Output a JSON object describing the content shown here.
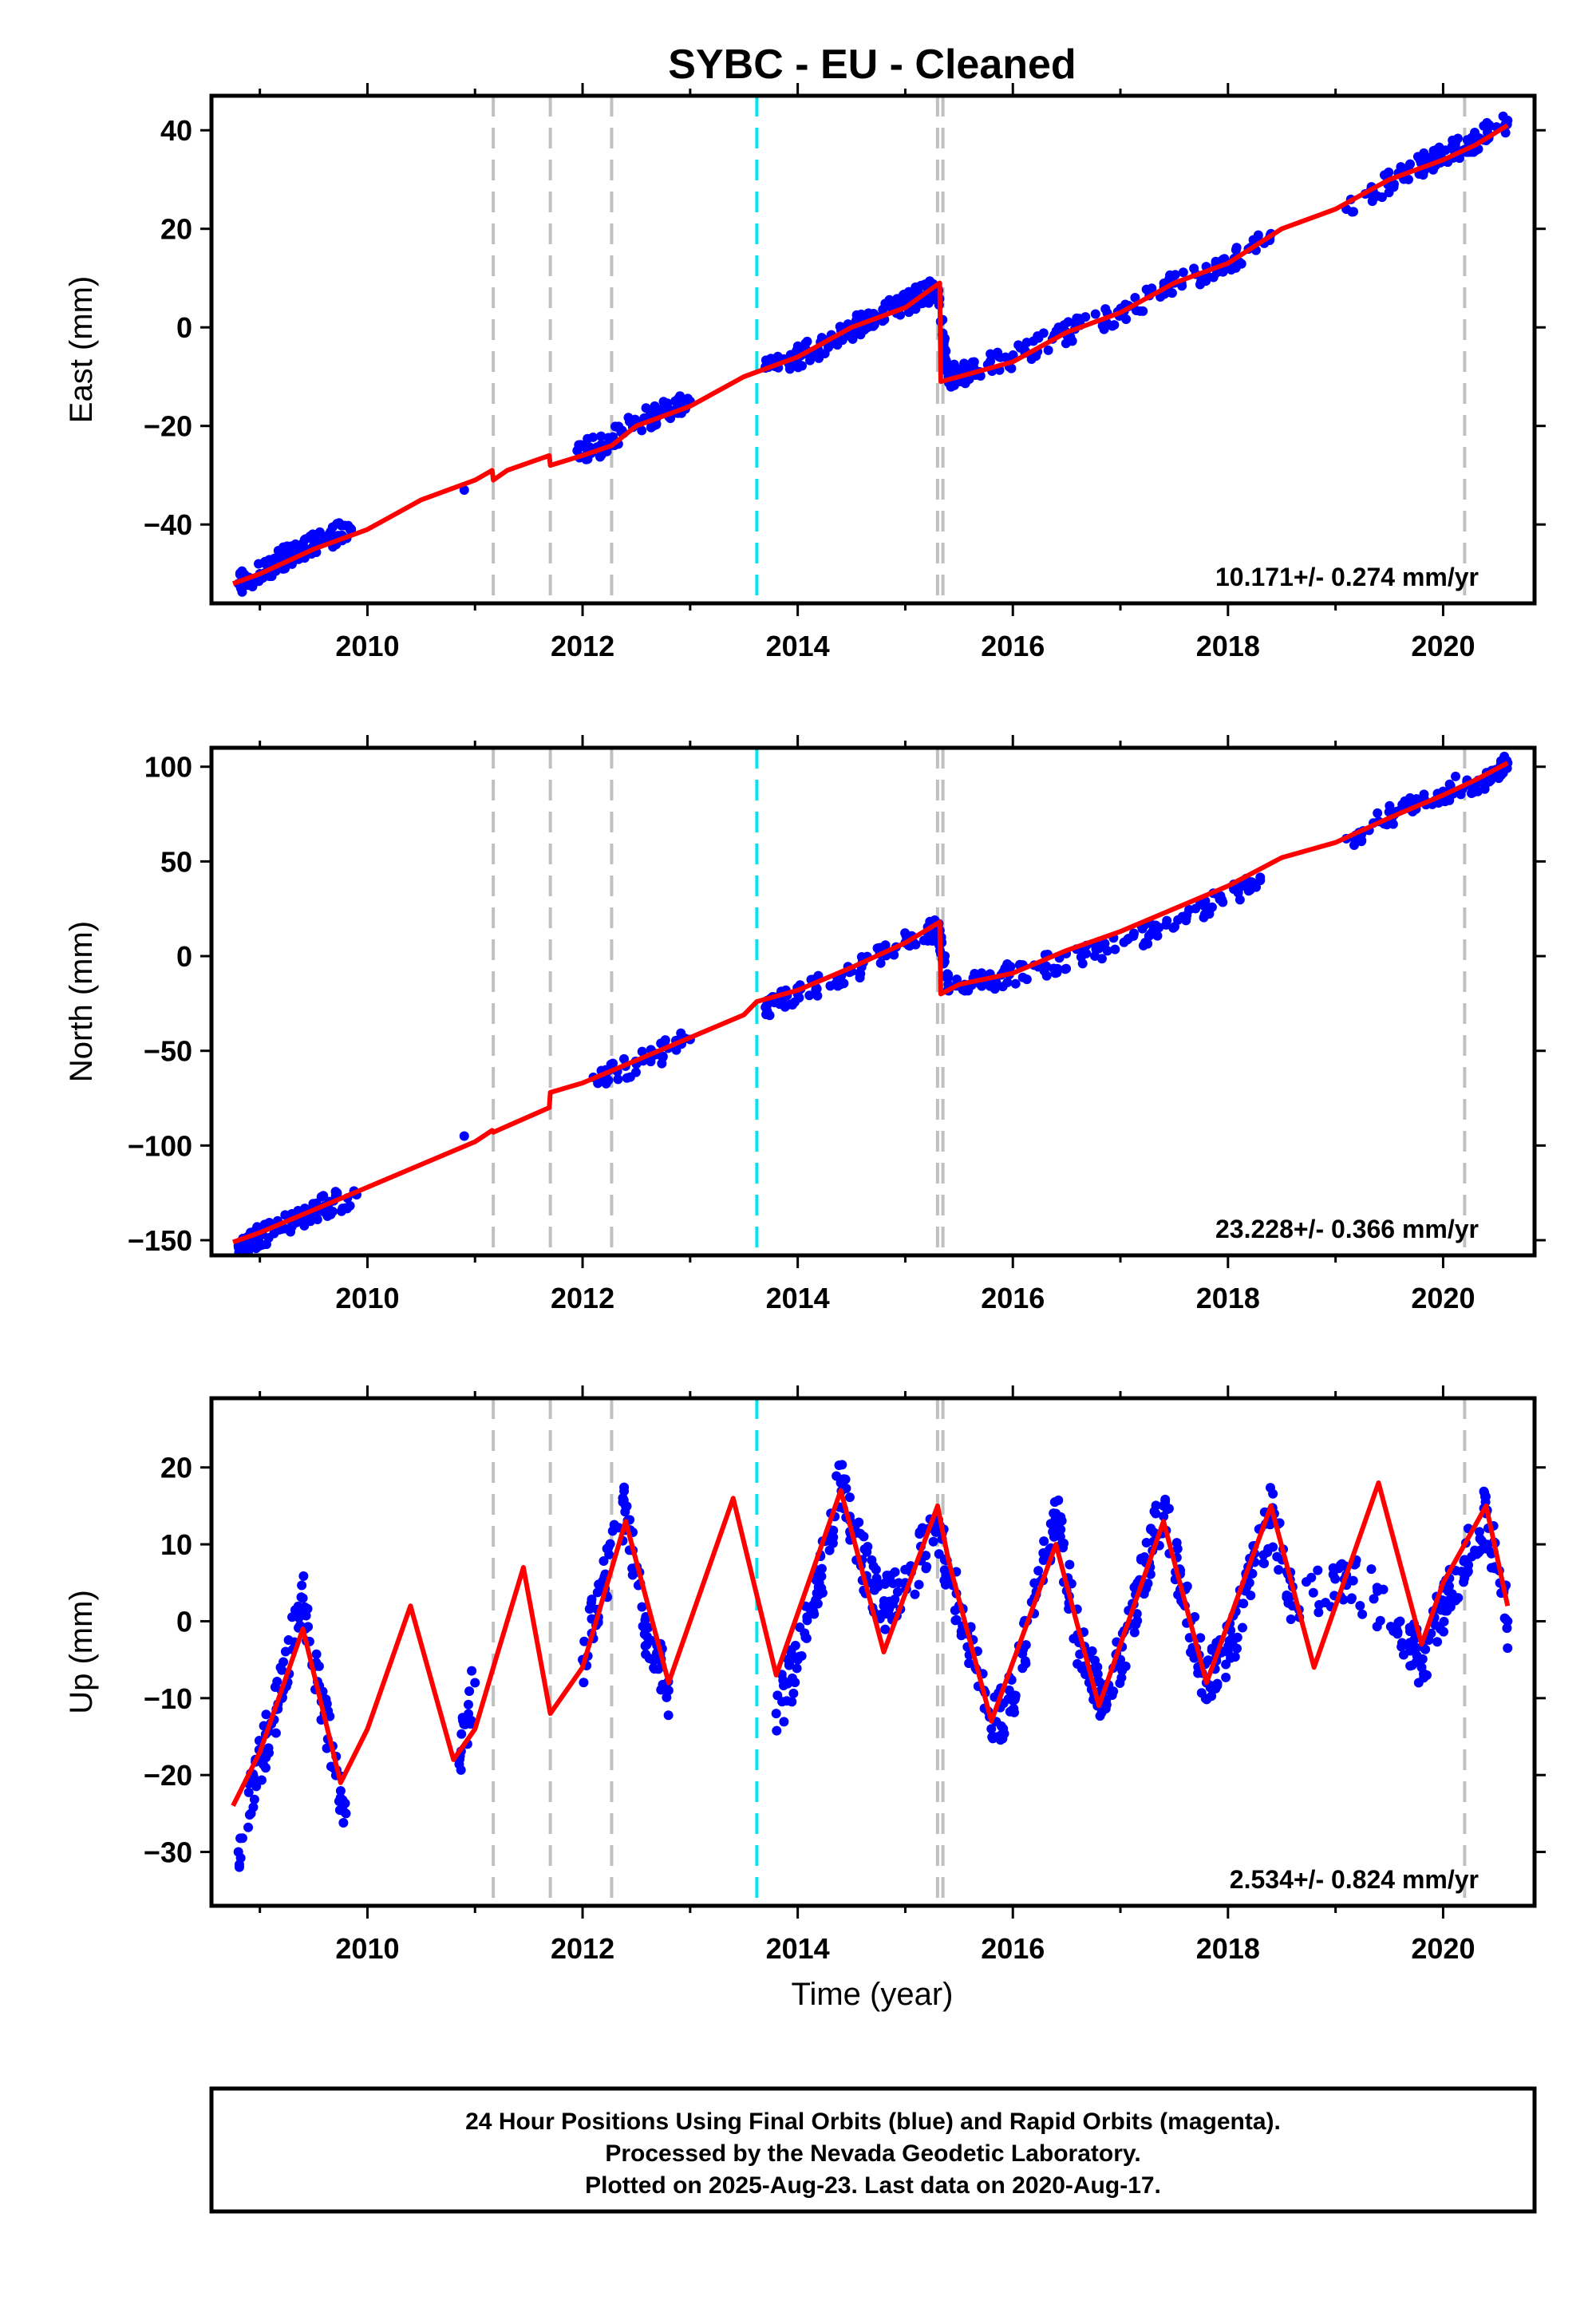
{
  "title": "SYBC  - EU - Cleaned",
  "x_axis_label": "Time (year)",
  "footer_lines": [
    "24 Hour Positions Using Final Orbits (blue) and Rapid Orbits (magenta).",
    "Processed by the Nevada Geodetic Laboratory.",
    "Plotted on 2025-Aug-23. Last data on 2020-Aug-17."
  ],
  "colors": {
    "observations": "#0000ff",
    "model_fit": "#ff0000",
    "equipment_change_line": "#c0c0c0",
    "earthquake_line": "#00e5ee"
  },
  "chart_data": [
    {
      "type": "scatter",
      "panel": "east",
      "ylabel": "East (mm)",
      "rate_text": "10.171+/- 0.274 mm/yr",
      "xlim": [
        2008.55,
        2020.85
      ],
      "ylim": [
        -56,
        47
      ],
      "xticks": [
        2010,
        2012,
        2014,
        2016,
        2018,
        2020
      ],
      "yticks": [
        -40,
        -20,
        0,
        20,
        40
      ],
      "dashed_lines_gray": [
        2011.17,
        2011.7,
        2012.27,
        2015.3,
        2015.35
      ],
      "dashed_lines_cyan": [
        2013.62
      ],
      "dashed_lines_gray_late": [
        2020.2
      ],
      "series": [
        {
          "role": "observations",
          "points": [
            [
              2008.8,
              -52
            ],
            [
              2009.0,
              -50
            ],
            [
              2009.2,
              -47
            ],
            [
              2009.4,
              -45
            ],
            [
              2009.6,
              -43
            ],
            [
              2009.85,
              -41
            ],
            [
              2010.9,
              -33
            ],
            [
              2011.95,
              -25
            ],
            [
              2012.2,
              -24
            ],
            [
              2012.5,
              -19
            ],
            [
              2012.8,
              -17
            ],
            [
              2013.0,
              -15
            ],
            [
              2013.7,
              -8
            ],
            [
              2014.0,
              -6
            ],
            [
              2014.3,
              -3
            ],
            [
              2014.6,
              1
            ],
            [
              2014.9,
              4
            ],
            [
              2015.1,
              6
            ],
            [
              2015.3,
              8
            ],
            [
              2015.4,
              -10
            ],
            [
              2015.6,
              -9
            ],
            [
              2016.0,
              -6
            ],
            [
              2016.5,
              -1
            ],
            [
              2017.0,
              3
            ],
            [
              2017.5,
              9
            ],
            [
              2018.0,
              13
            ],
            [
              2018.4,
              19
            ],
            [
              2019.1,
              24
            ],
            [
              2019.6,
              31
            ],
            [
              2019.9,
              34
            ],
            [
              2020.1,
              36
            ],
            [
              2020.3,
              38
            ],
            [
              2020.6,
              42
            ]
          ]
        },
        {
          "role": "model_fit",
          "points": [
            [
              2008.75,
              -52
            ],
            [
              2009.0,
              -50
            ],
            [
              2009.5,
              -45
            ],
            [
              2010.0,
              -41
            ],
            [
              2010.5,
              -35
            ],
            [
              2011.0,
              -31
            ],
            [
              2011.16,
              -29
            ],
            [
              2011.17,
              -31
            ],
            [
              2011.3,
              -29
            ],
            [
              2011.69,
              -26
            ],
            [
              2011.7,
              -28
            ],
            [
              2012.0,
              -26
            ],
            [
              2012.27,
              -24
            ],
            [
              2012.5,
              -20
            ],
            [
              2013.0,
              -16
            ],
            [
              2013.5,
              -10
            ],
            [
              2014.0,
              -6
            ],
            [
              2014.5,
              0
            ],
            [
              2015.0,
              4
            ],
            [
              2015.32,
              9
            ],
            [
              2015.33,
              -11
            ],
            [
              2015.5,
              -10
            ],
            [
              2016.0,
              -7
            ],
            [
              2016.5,
              -1
            ],
            [
              2017.0,
              3
            ],
            [
              2017.5,
              9
            ],
            [
              2018.0,
              13
            ],
            [
              2018.5,
              20
            ],
            [
              2019.0,
              24
            ],
            [
              2019.5,
              30
            ],
            [
              2020.0,
              34
            ],
            [
              2020.3,
              37
            ],
            [
              2020.6,
              41
            ]
          ]
        }
      ]
    },
    {
      "type": "scatter",
      "panel": "north",
      "ylabel": "North (mm)",
      "rate_text": "23.228+/- 0.366 mm/yr",
      "xlim": [
        2008.55,
        2020.85
      ],
      "ylim": [
        -158,
        110
      ],
      "xticks": [
        2010,
        2012,
        2014,
        2016,
        2018,
        2020
      ],
      "yticks": [
        -150,
        -100,
        -50,
        0,
        50,
        100
      ],
      "dashed_lines_gray": [
        2011.17,
        2011.7,
        2012.27,
        2015.3,
        2015.35
      ],
      "dashed_lines_cyan": [
        2013.62
      ],
      "dashed_lines_gray_late": [
        2020.2
      ],
      "series": [
        {
          "role": "observations",
          "points": [
            [
              2008.8,
              -153
            ],
            [
              2009.0,
              -148
            ],
            [
              2009.3,
              -141
            ],
            [
              2009.6,
              -132
            ],
            [
              2009.9,
              -126
            ],
            [
              2010.9,
              -95
            ],
            [
              2012.1,
              -64
            ],
            [
              2012.5,
              -57
            ],
            [
              2013.0,
              -44
            ],
            [
              2013.7,
              -27
            ],
            [
              2014.0,
              -20
            ],
            [
              2014.5,
              -8
            ],
            [
              2015.0,
              7
            ],
            [
              2015.3,
              15
            ],
            [
              2015.4,
              -15
            ],
            [
              2015.8,
              -12
            ],
            [
              2016.3,
              -5
            ],
            [
              2016.8,
              4
            ],
            [
              2017.3,
              13
            ],
            [
              2017.8,
              26
            ],
            [
              2018.3,
              40
            ],
            [
              2019.1,
              62
            ],
            [
              2019.6,
              77
            ],
            [
              2020.0,
              87
            ],
            [
              2020.4,
              94
            ],
            [
              2020.6,
              102
            ]
          ]
        },
        {
          "role": "model_fit",
          "points": [
            [
              2008.75,
              -151
            ],
            [
              2009.0,
              -146
            ],
            [
              2009.5,
              -134
            ],
            [
              2010.0,
              -122
            ],
            [
              2010.5,
              -110
            ],
            [
              2011.0,
              -98
            ],
            [
              2011.16,
              -92
            ],
            [
              2011.17,
              -93
            ],
            [
              2011.69,
              -80
            ],
            [
              2011.7,
              -72
            ],
            [
              2012.0,
              -67
            ],
            [
              2012.5,
              -55
            ],
            [
              2013.0,
              -43
            ],
            [
              2013.5,
              -31
            ],
            [
              2013.62,
              -24
            ],
            [
              2014.0,
              -18
            ],
            [
              2014.5,
              -6
            ],
            [
              2015.0,
              7
            ],
            [
              2015.32,
              18
            ],
            [
              2015.33,
              -20
            ],
            [
              2015.5,
              -15
            ],
            [
              2016.0,
              -9
            ],
            [
              2016.5,
              3
            ],
            [
              2017.0,
              13
            ],
            [
              2017.5,
              25
            ],
            [
              2018.0,
              37
            ],
            [
              2018.5,
              52
            ],
            [
              2019.0,
              60
            ],
            [
              2019.5,
              73
            ],
            [
              2020.0,
              85
            ],
            [
              2020.3,
              93
            ],
            [
              2020.6,
              102
            ]
          ]
        }
      ]
    },
    {
      "type": "scatter",
      "panel": "up",
      "ylabel": "Up (mm)",
      "rate_text": "2.534+/- 0.824 mm/yr",
      "xlim": [
        2008.55,
        2020.85
      ],
      "ylim": [
        -37,
        29
      ],
      "xticks": [
        2010,
        2012,
        2014,
        2016,
        2018,
        2020
      ],
      "yticks": [
        -30,
        -20,
        -10,
        0,
        10,
        20
      ],
      "dashed_lines_gray": [
        2011.17,
        2011.7,
        2012.27,
        2015.3,
        2015.35
      ],
      "dashed_lines_cyan": [
        2013.62
      ],
      "dashed_lines_gray_late": [
        2020.2
      ],
      "series": [
        {
          "role": "observations",
          "points": [
            [
              2008.8,
              -30
            ],
            [
              2009.0,
              -18
            ],
            [
              2009.2,
              -9
            ],
            [
              2009.4,
              3
            ],
            [
              2009.6,
              -12
            ],
            [
              2009.8,
              -25
            ],
            [
              2010.85,
              -18
            ],
            [
              2011.0,
              -8
            ],
            [
              2012.0,
              -5
            ],
            [
              2012.2,
              5
            ],
            [
              2012.4,
              15
            ],
            [
              2012.6,
              -2
            ],
            [
              2012.8,
              -9
            ],
            [
              2013.8,
              -12
            ],
            [
              2014.0,
              -5
            ],
            [
              2014.2,
              5
            ],
            [
              2014.4,
              18
            ],
            [
              2014.6,
              8
            ],
            [
              2014.8,
              2
            ],
            [
              2015.0,
              5
            ],
            [
              2015.3,
              12
            ],
            [
              2015.5,
              2
            ],
            [
              2015.8,
              -14
            ],
            [
              2016.0,
              -10
            ],
            [
              2016.2,
              3
            ],
            [
              2016.4,
              14
            ],
            [
              2016.6,
              -2
            ],
            [
              2016.8,
              -10
            ],
            [
              2017.0,
              -5
            ],
            [
              2017.2,
              5
            ],
            [
              2017.4,
              15
            ],
            [
              2017.6,
              2
            ],
            [
              2017.8,
              -8
            ],
            [
              2018.0,
              -4
            ],
            [
              2018.2,
              5
            ],
            [
              2018.4,
              14
            ],
            [
              2018.6,
              2
            ],
            [
              2019.1,
              6
            ],
            [
              2019.6,
              0
            ],
            [
              2019.8,
              -6
            ],
            [
              2020.0,
              2
            ],
            [
              2020.2,
              8
            ],
            [
              2020.4,
              14
            ],
            [
              2020.6,
              0
            ]
          ]
        },
        {
          "role": "model_fit",
          "points": [
            [
              2008.75,
              -24
            ],
            [
              2009.0,
              -17
            ],
            [
              2009.4,
              -1
            ],
            [
              2009.75,
              -21
            ],
            [
              2010.0,
              -14
            ],
            [
              2010.4,
              2
            ],
            [
              2010.8,
              -18
            ],
            [
              2011.0,
              -14
            ],
            [
              2011.17,
              -6
            ],
            [
              2011.45,
              7
            ],
            [
              2011.7,
              -12
            ],
            [
              2012.0,
              -6
            ],
            [
              2012.4,
              13
            ],
            [
              2012.8,
              -8
            ],
            [
              2013.4,
              16
            ],
            [
              2013.8,
              -7
            ],
            [
              2014.4,
              17
            ],
            [
              2014.8,
              -4
            ],
            [
              2015.3,
              15
            ],
            [
              2015.4,
              8
            ],
            [
              2015.8,
              -13
            ],
            [
              2016.4,
              10
            ],
            [
              2016.8,
              -11
            ],
            [
              2017.4,
              13
            ],
            [
              2017.8,
              -8
            ],
            [
              2018.4,
              15
            ],
            [
              2018.8,
              -6
            ],
            [
              2019.4,
              18
            ],
            [
              2019.8,
              -3
            ],
            [
              2020.0,
              5
            ],
            [
              2020.4,
              15
            ],
            [
              2020.6,
              2
            ]
          ]
        }
      ]
    }
  ]
}
